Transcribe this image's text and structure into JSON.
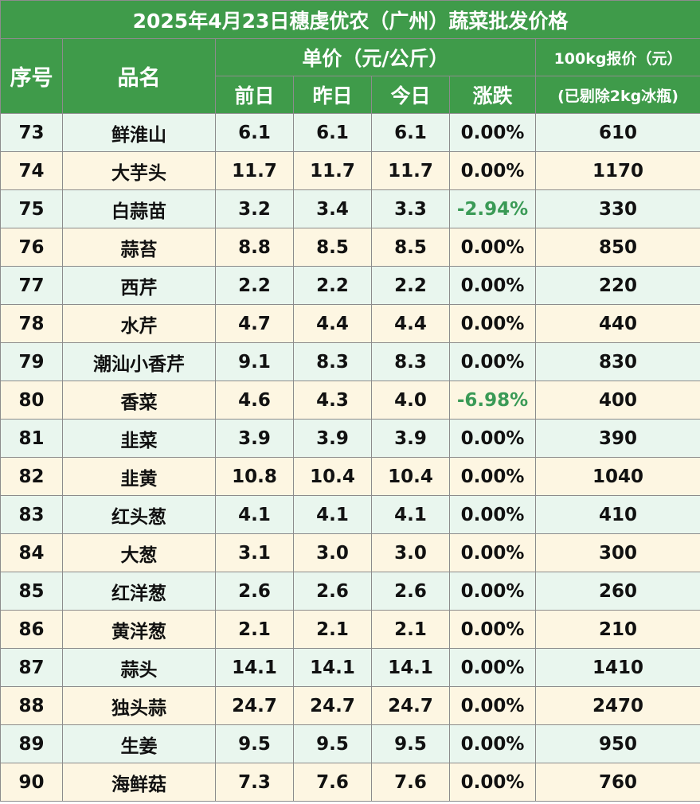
{
  "title": "2025年4月23日穗虔优农（广州）蔬菜批发价格",
  "headers": {
    "seq": "序号",
    "name": "品名",
    "unit_price": "单价（元/公斤）",
    "prev_day": "前日",
    "yesterday": "昨日",
    "today": "今日",
    "change": "涨跌",
    "quote_100kg": "100kg报价（元）",
    "quote_note": "(已剔除2kg冰瓶)"
  },
  "rows": [
    {
      "seq": "73",
      "name": "鲜淮山",
      "prev": "6.1",
      "yest": "6.1",
      "today": "6.1",
      "change": "0.00%",
      "quote": "610",
      "dir": "flat"
    },
    {
      "seq": "74",
      "name": "大芋头",
      "prev": "11.7",
      "yest": "11.7",
      "today": "11.7",
      "change": "0.00%",
      "quote": "1170",
      "dir": "flat"
    },
    {
      "seq": "75",
      "name": "白蒜苗",
      "prev": "3.2",
      "yest": "3.4",
      "today": "3.3",
      "change": "-2.94%",
      "quote": "330",
      "dir": "down"
    },
    {
      "seq": "76",
      "name": "蒜苔",
      "prev": "8.8",
      "yest": "8.5",
      "today": "8.5",
      "change": "0.00%",
      "quote": "850",
      "dir": "flat"
    },
    {
      "seq": "77",
      "name": "西芹",
      "prev": "2.2",
      "yest": "2.2",
      "today": "2.2",
      "change": "0.00%",
      "quote": "220",
      "dir": "flat"
    },
    {
      "seq": "78",
      "name": "水芹",
      "prev": "4.7",
      "yest": "4.4",
      "today": "4.4",
      "change": "0.00%",
      "quote": "440",
      "dir": "flat"
    },
    {
      "seq": "79",
      "name": "潮汕小香芹",
      "prev": "9.1",
      "yest": "8.3",
      "today": "8.3",
      "change": "0.00%",
      "quote": "830",
      "dir": "flat"
    },
    {
      "seq": "80",
      "name": "香菜",
      "prev": "4.6",
      "yest": "4.3",
      "today": "4.0",
      "change": "-6.98%",
      "quote": "400",
      "dir": "down"
    },
    {
      "seq": "81",
      "name": "韭菜",
      "prev": "3.9",
      "yest": "3.9",
      "today": "3.9",
      "change": "0.00%",
      "quote": "390",
      "dir": "flat"
    },
    {
      "seq": "82",
      "name": "韭黄",
      "prev": "10.8",
      "yest": "10.4",
      "today": "10.4",
      "change": "0.00%",
      "quote": "1040",
      "dir": "flat"
    },
    {
      "seq": "83",
      "name": "红头葱",
      "prev": "4.1",
      "yest": "4.1",
      "today": "4.1",
      "change": "0.00%",
      "quote": "410",
      "dir": "flat"
    },
    {
      "seq": "84",
      "name": "大葱",
      "prev": "3.1",
      "yest": "3.0",
      "today": "3.0",
      "change": "0.00%",
      "quote": "300",
      "dir": "flat"
    },
    {
      "seq": "85",
      "name": "红洋葱",
      "prev": "2.6",
      "yest": "2.6",
      "today": "2.6",
      "change": "0.00%",
      "quote": "260",
      "dir": "flat"
    },
    {
      "seq": "86",
      "name": "黄洋葱",
      "prev": "2.1",
      "yest": "2.1",
      "today": "2.1",
      "change": "0.00%",
      "quote": "210",
      "dir": "flat"
    },
    {
      "seq": "87",
      "name": "蒜头",
      "prev": "14.1",
      "yest": "14.1",
      "today": "14.1",
      "change": "0.00%",
      "quote": "1410",
      "dir": "flat"
    },
    {
      "seq": "88",
      "name": "独头蒜",
      "prev": "24.7",
      "yest": "24.7",
      "today": "24.7",
      "change": "0.00%",
      "quote": "2470",
      "dir": "flat"
    },
    {
      "seq": "89",
      "name": "生姜",
      "prev": "9.5",
      "yest": "9.5",
      "today": "9.5",
      "change": "0.00%",
      "quote": "950",
      "dir": "flat"
    },
    {
      "seq": "90",
      "name": "海鲜菇",
      "prev": "7.3",
      "yest": "7.6",
      "today": "7.6",
      "change": "0.00%",
      "quote": "760",
      "dir": "flat"
    }
  ],
  "colors": {
    "header_green": "#3f9b4a",
    "row_tint_green": "#e9f6ee",
    "row_tint_cream": "#fdf6e2",
    "down_green": "#3a9a56"
  }
}
